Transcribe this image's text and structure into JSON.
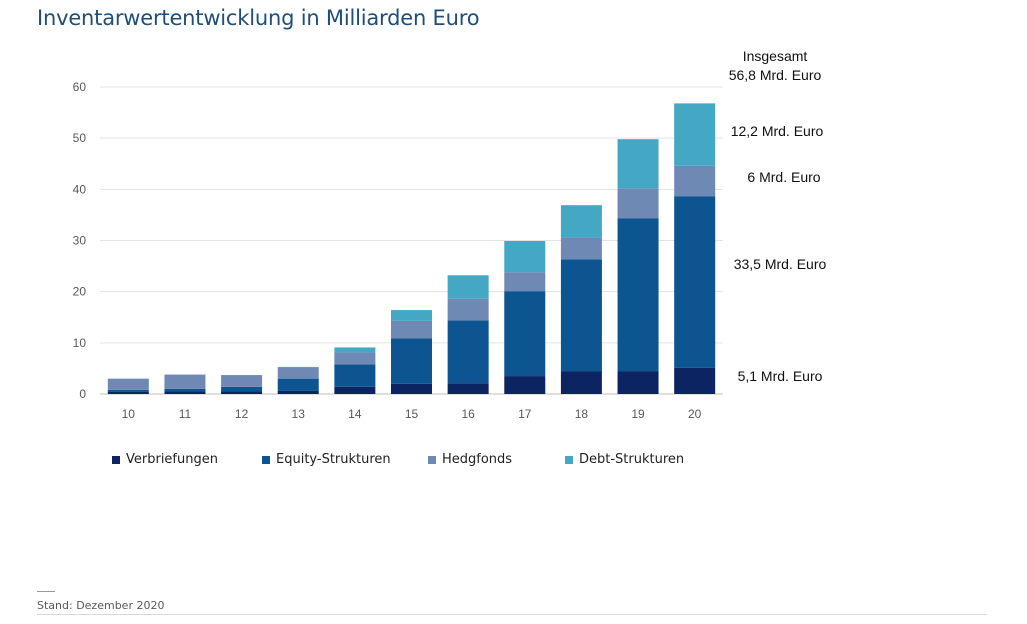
{
  "title": "Inventarwertentwicklung in Milliarden Euro",
  "footer": "Stand: Dezember 2020",
  "colors": {
    "Verbriefungen": "#0c2461",
    "Equity-Strukturen": "#0c5591",
    "Hedgfonds": "#6f89b5",
    "Debt-Strukturen": "#44a7c4"
  },
  "annotations": {
    "total_label": "Insgesamt",
    "total_value": "56,8 Mrd. Euro",
    "debt": "12,2 Mrd. Euro",
    "hedge": "6 Mrd. Euro",
    "equity": "33,5 Mrd. Euro",
    "verbriefungen": "5,1 Mrd. Euro"
  },
  "chart_data": {
    "type": "bar",
    "stacked": true,
    "title": "Inventarwertentwicklung in Milliarden Euro",
    "xlabel": "",
    "ylabel": "",
    "ylim": [
      0,
      60
    ],
    "yticks": [
      0,
      10,
      20,
      30,
      40,
      50,
      60
    ],
    "grid": true,
    "legend_position": "bottom",
    "categories": [
      "10",
      "11",
      "12",
      "13",
      "14",
      "15",
      "16",
      "17",
      "18",
      "19",
      "20"
    ],
    "series": [
      {
        "name": "Verbriefungen",
        "values": [
          0.4,
          0.5,
          0.5,
          0.6,
          1.4,
          2.0,
          2.1,
          3.5,
          4.4,
          4.4,
          5.1
        ]
      },
      {
        "name": "Equity-Strukturen",
        "values": [
          0.4,
          0.5,
          0.9,
          2.4,
          4.4,
          8.9,
          12.3,
          16.6,
          21.9,
          29.9,
          33.5
        ]
      },
      {
        "name": "Hedgfonds",
        "values": [
          2.2,
          2.8,
          2.3,
          2.2,
          2.3,
          3.4,
          4.2,
          3.7,
          4.2,
          5.9,
          6.0
        ]
      },
      {
        "name": "Debt-Strukturen",
        "values": [
          0.0,
          0.0,
          0.0,
          0.1,
          1.0,
          2.1,
          4.6,
          6.1,
          6.4,
          9.6,
          12.2
        ]
      }
    ]
  }
}
